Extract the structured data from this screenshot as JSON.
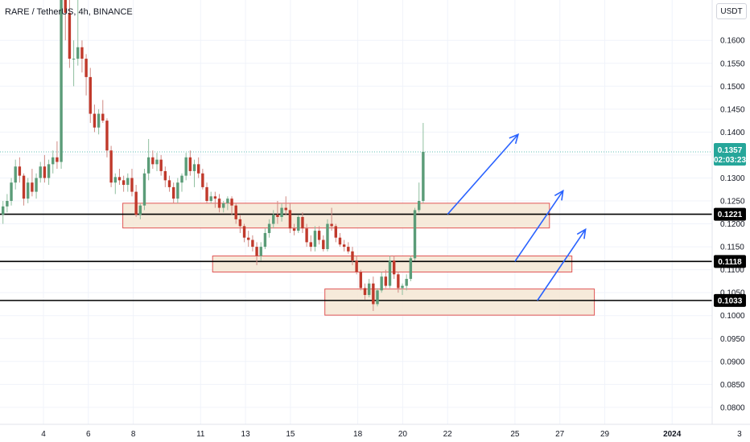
{
  "header": {
    "symbol": "RARE / TetherUS, 4h, BINANCE",
    "currency_button": "USDT"
  },
  "price_tag": {
    "price": "0.1357",
    "countdown": "02:03:23",
    "color": "#26a69a"
  },
  "colors": {
    "up": "#5b9c78",
    "down": "#c0392b",
    "zone_fill": "#f5e6d3",
    "zone_border": "#e05555",
    "arrow": "#2962ff",
    "level_line": "#000000"
  },
  "chart_data": {
    "type": "candlestick",
    "y_axis": {
      "range": [
        0.0763,
        0.1688
      ],
      "ticks": [
        "0.1600",
        "0.1550",
        "0.1500",
        "0.1450",
        "0.1400",
        "0.1350",
        "0.1300",
        "0.1250",
        "0.1200",
        "0.1150",
        "0.1100",
        "0.1050",
        "0.1000",
        "0.0950",
        "0.0900",
        "0.0850",
        "0.0800"
      ]
    },
    "x_axis": {
      "ticks": [
        "4",
        "6",
        "8",
        "11",
        "13",
        "15",
        "18",
        "20",
        "22",
        "25",
        "27",
        "29",
        "2024",
        "3"
      ]
    },
    "levels": [
      {
        "price": 0.1221,
        "label": "0.1221"
      },
      {
        "price": 0.1118,
        "label": "0.1118"
      },
      {
        "price": 0.1033,
        "label": "0.1033"
      }
    ],
    "zones": [
      {
        "from_date": "Dec 8",
        "to_date": "Dec 26",
        "low": 0.1191,
        "high": 0.1245
      },
      {
        "from_date": "Dec 12",
        "to_date": "Dec 27",
        "low": 0.1095,
        "high": 0.113
      },
      {
        "from_date": "Dec 17",
        "to_date": "Dec 28",
        "low": 0.1001,
        "high": 0.1058
      }
    ],
    "projection_arrows": [
      {
        "from_date": "Dec 22",
        "from_price": 0.1221,
        "to_date": "Dec 25",
        "to_price": 0.1395
      },
      {
        "from_date": "Dec 25",
        "from_price": 0.1118,
        "to_date": "Dec 27",
        "to_price": 0.1272
      },
      {
        "from_date": "Dec 26",
        "from_price": 0.1033,
        "to_date": "Dec 28",
        "to_price": 0.1188
      }
    ],
    "candles": [
      [
        0.122,
        0.125,
        0.12,
        0.1238
      ],
      [
        0.1238,
        0.1265,
        0.1225,
        0.125
      ],
      [
        0.125,
        0.13,
        0.124,
        0.129
      ],
      [
        0.129,
        0.134,
        0.1275,
        0.1325
      ],
      [
        0.1325,
        0.1345,
        0.129,
        0.1305
      ],
      [
        0.1305,
        0.131,
        0.124,
        0.1255
      ],
      [
        0.1255,
        0.13,
        0.1245,
        0.129
      ],
      [
        0.129,
        0.132,
        0.126,
        0.127
      ],
      [
        0.127,
        0.131,
        0.1255,
        0.13
      ],
      [
        0.13,
        0.1335,
        0.129,
        0.1325
      ],
      [
        0.1325,
        0.135,
        0.129,
        0.13
      ],
      [
        0.13,
        0.134,
        0.1285,
        0.133
      ],
      [
        0.133,
        0.136,
        0.131,
        0.1345
      ],
      [
        0.1345,
        0.138,
        0.132,
        0.1335
      ],
      [
        0.1335,
        0.17,
        0.132,
        0.169
      ],
      [
        0.169,
        0.17,
        0.16,
        0.166
      ],
      [
        0.166,
        0.17,
        0.154,
        0.156
      ],
      [
        0.156,
        0.16,
        0.15,
        0.156
      ],
      [
        0.156,
        0.169,
        0.1545,
        0.1585
      ],
      [
        0.1585,
        0.16,
        0.153,
        0.156
      ],
      [
        0.156,
        0.157,
        0.148,
        0.152
      ],
      [
        0.152,
        0.154,
        0.142,
        0.144
      ],
      [
        0.144,
        0.146,
        0.14,
        0.141
      ],
      [
        0.141,
        0.145,
        0.1395,
        0.144
      ],
      [
        0.144,
        0.147,
        0.142,
        0.1425
      ],
      [
        0.1425,
        0.143,
        0.1345,
        0.136
      ],
      [
        0.136,
        0.137,
        0.128,
        0.129
      ],
      [
        0.129,
        0.131,
        0.1265,
        0.1302
      ],
      [
        0.1302,
        0.132,
        0.1285,
        0.1295
      ],
      [
        0.1295,
        0.1305,
        0.127,
        0.1285
      ],
      [
        0.1285,
        0.131,
        0.127,
        0.13
      ],
      [
        0.13,
        0.132,
        0.126,
        0.127
      ],
      [
        0.127,
        0.1285,
        0.1215,
        0.122
      ],
      [
        0.122,
        0.1245,
        0.121,
        0.124
      ],
      [
        0.124,
        0.132,
        0.123,
        0.131
      ],
      [
        0.131,
        0.1385,
        0.1295,
        0.1345
      ],
      [
        0.1345,
        0.136,
        0.132,
        0.133
      ],
      [
        0.133,
        0.1355,
        0.1315,
        0.134
      ],
      [
        0.134,
        0.135,
        0.1305,
        0.1315
      ],
      [
        0.1315,
        0.1325,
        0.128,
        0.1295
      ],
      [
        0.1295,
        0.1305,
        0.127,
        0.128
      ],
      [
        0.128,
        0.129,
        0.1245,
        0.1255
      ],
      [
        0.1255,
        0.13,
        0.1245,
        0.129
      ],
      [
        0.129,
        0.131,
        0.127,
        0.1305
      ],
      [
        0.1305,
        0.1355,
        0.1295,
        0.1345
      ],
      [
        0.1345,
        0.136,
        0.1305,
        0.1315
      ],
      [
        0.1315,
        0.134,
        0.128,
        0.133
      ],
      [
        0.133,
        0.1345,
        0.13,
        0.131
      ],
      [
        0.131,
        0.132,
        0.1275,
        0.128
      ],
      [
        0.128,
        0.129,
        0.1245,
        0.125
      ],
      [
        0.125,
        0.127,
        0.1245,
        0.126
      ],
      [
        0.126,
        0.127,
        0.1235,
        0.1255
      ],
      [
        0.1255,
        0.1265,
        0.1225,
        0.1235
      ],
      [
        0.1235,
        0.125,
        0.1225,
        0.1245
      ],
      [
        0.1245,
        0.126,
        0.123,
        0.1255
      ],
      [
        0.1255,
        0.126,
        0.122,
        0.124
      ],
      [
        0.124,
        0.1245,
        0.12,
        0.121
      ],
      [
        0.121,
        0.122,
        0.118,
        0.1195
      ],
      [
        0.1195,
        0.12,
        0.116,
        0.117
      ],
      [
        0.117,
        0.1185,
        0.115,
        0.1165
      ],
      [
        0.1165,
        0.1175,
        0.114,
        0.115
      ],
      [
        0.115,
        0.116,
        0.111,
        0.113
      ],
      [
        0.113,
        0.116,
        0.112,
        0.115
      ],
      [
        0.115,
        0.119,
        0.1145,
        0.118
      ],
      [
        0.118,
        0.121,
        0.117,
        0.12
      ],
      [
        0.12,
        0.123,
        0.119,
        0.122
      ],
      [
        0.122,
        0.125,
        0.12,
        0.1215
      ],
      [
        0.1215,
        0.1245,
        0.1205,
        0.1235
      ],
      [
        0.1235,
        0.126,
        0.122,
        0.123
      ],
      [
        0.123,
        0.1245,
        0.118,
        0.119
      ],
      [
        0.119,
        0.12,
        0.1175,
        0.1185
      ],
      [
        0.1185,
        0.122,
        0.118,
        0.1215
      ],
      [
        0.1215,
        0.1225,
        0.118,
        0.119
      ],
      [
        0.119,
        0.12,
        0.115,
        0.116
      ],
      [
        0.116,
        0.1175,
        0.114,
        0.115
      ],
      [
        0.115,
        0.1195,
        0.114,
        0.1185
      ],
      [
        0.1185,
        0.1195,
        0.1155,
        0.1165
      ],
      [
        0.1165,
        0.1175,
        0.114,
        0.1145
      ],
      [
        0.1145,
        0.121,
        0.114,
        0.12
      ],
      [
        0.12,
        0.1235,
        0.1185,
        0.1195
      ],
      [
        0.1195,
        0.12,
        0.116,
        0.117
      ],
      [
        0.117,
        0.118,
        0.115,
        0.1155
      ],
      [
        0.1155,
        0.1165,
        0.114,
        0.115
      ],
      [
        0.115,
        0.116,
        0.1135,
        0.114
      ],
      [
        0.114,
        0.115,
        0.111,
        0.112
      ],
      [
        0.112,
        0.113,
        0.109,
        0.1095
      ],
      [
        0.1095,
        0.11,
        0.1055,
        0.106
      ],
      [
        0.106,
        0.107,
        0.1035,
        0.1045
      ],
      [
        0.1045,
        0.108,
        0.104,
        0.107
      ],
      [
        0.107,
        0.1085,
        0.101,
        0.1025
      ],
      [
        0.1025,
        0.106,
        0.102,
        0.1055
      ],
      [
        0.1055,
        0.1095,
        0.105,
        0.1085
      ],
      [
        0.1085,
        0.11,
        0.106,
        0.1065
      ],
      [
        0.1065,
        0.113,
        0.106,
        0.112
      ],
      [
        0.112,
        0.113,
        0.108,
        0.109
      ],
      [
        0.109,
        0.1095,
        0.105,
        0.106
      ],
      [
        0.106,
        0.107,
        0.1045,
        0.1065
      ],
      [
        0.1065,
        0.109,
        0.1055,
        0.108
      ],
      [
        0.108,
        0.113,
        0.1075,
        0.1125
      ],
      [
        0.1125,
        0.1235,
        0.112,
        0.123
      ],
      [
        0.123,
        0.129,
        0.1225,
        0.125
      ],
      [
        0.125,
        0.142,
        0.1245,
        0.1357
      ]
    ]
  }
}
